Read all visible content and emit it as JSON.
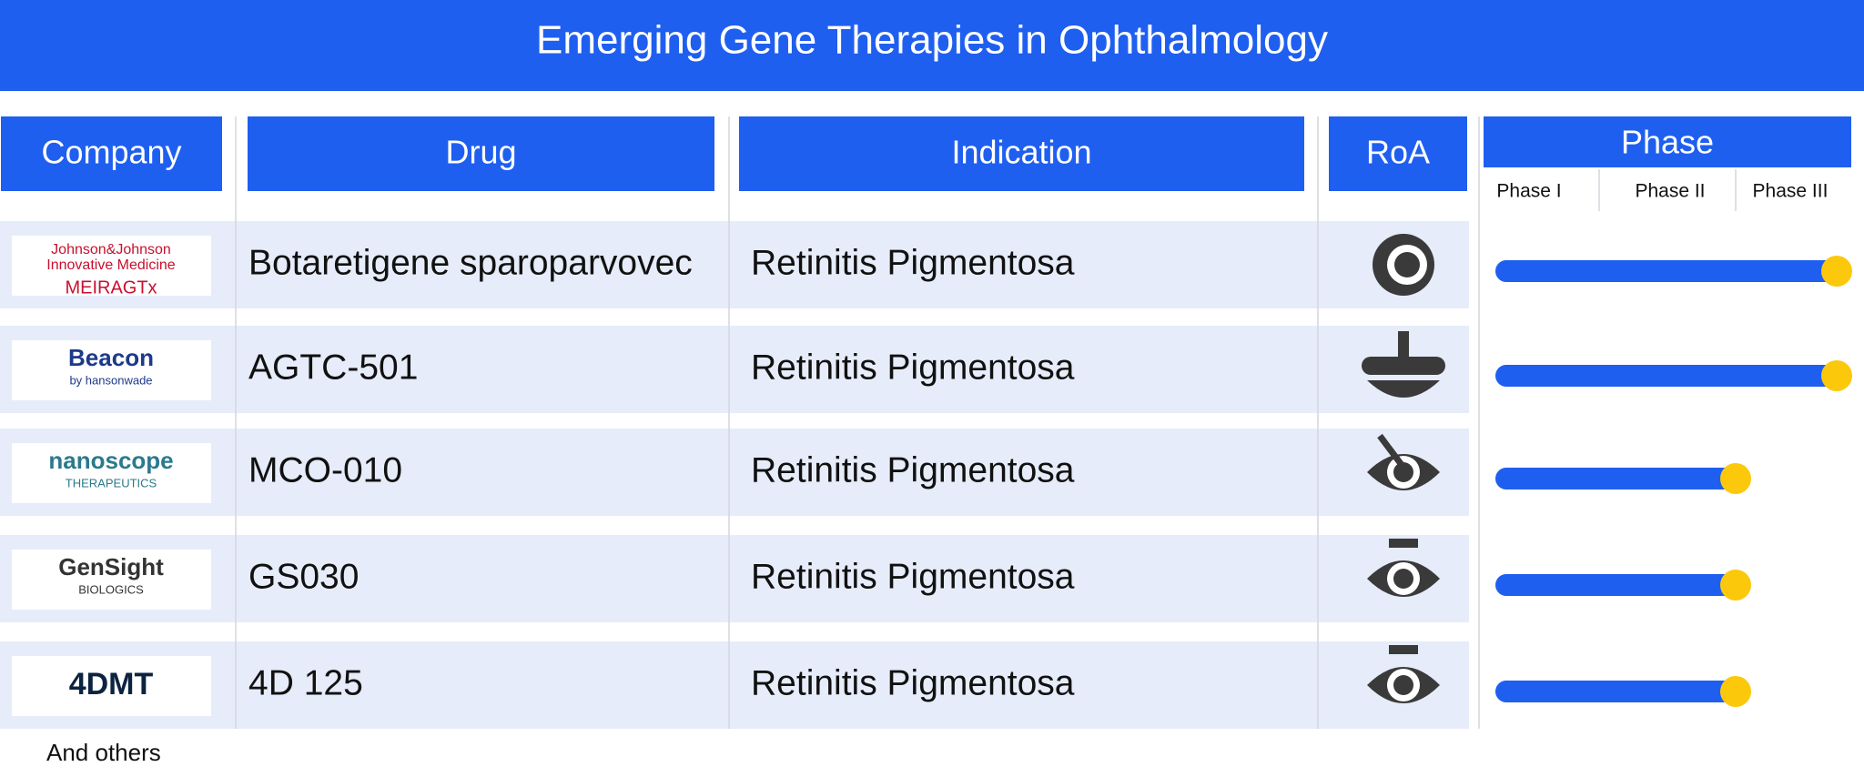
{
  "title": "Emerging Gene Therapies in Ophthalmology",
  "headers": [
    "Company",
    "Drug",
    "Indication",
    "RoA",
    "Phase"
  ],
  "phases": [
    "Phase I",
    "Phase II",
    "Phase III"
  ],
  "rows": [
    {
      "company": [
        "Johnson&Johnson",
        "Innovative Medicine",
        "MEIRAGTx"
      ],
      "drug": "Botaretigene sparoparvovec",
      "indication": "Retinitis Pigmentosa",
      "phase_progress": 3
    },
    {
      "company": [
        "Beacon",
        "by hansonwade"
      ],
      "drug": "AGTC-501",
      "indication": "Retinitis Pigmentosa",
      "phase_progress": 3
    },
    {
      "company": [
        "nanoscope",
        "THERAPEUTICS"
      ],
      "drug": "MCO-010",
      "indication": "Retinitis Pigmentosa",
      "phase_progress": 2
    },
    {
      "company": [
        "GenSight",
        "BIOLOGICS"
      ],
      "drug": "GS030",
      "indication": "Retinitis Pigmentosa",
      "phase_progress": 2
    },
    {
      "company": [
        "4DMT"
      ],
      "drug": "4D 125",
      "indication": "Retinitis Pigmentosa",
      "phase_progress": 2
    }
  ],
  "footer": "And others"
}
